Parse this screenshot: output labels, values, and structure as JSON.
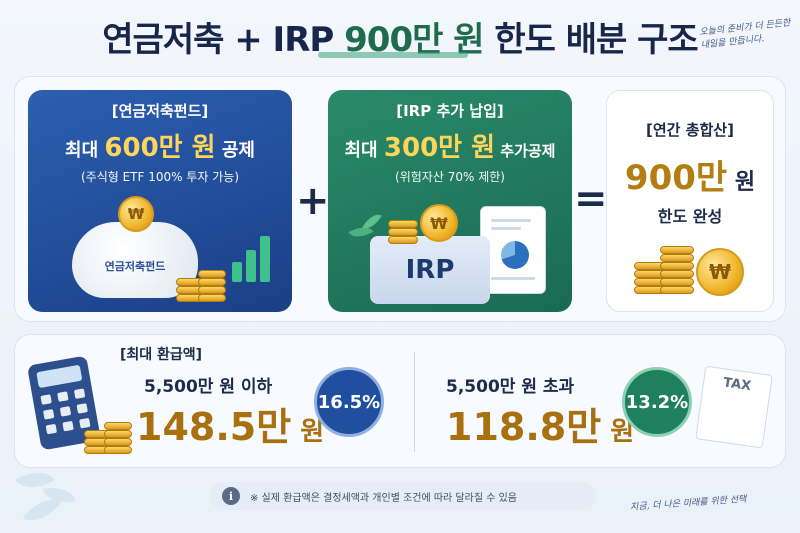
{
  "title": {
    "part1": "연금저축 + IRP ",
    "accent": "900만 원",
    "part2": " 한도 배분 구조"
  },
  "hand_notes": {
    "top": "오늘의 준비가 더 든든한 내일을 만듭니다.",
    "bottom": "지금, 더 나은 미래를 위한 선택"
  },
  "pension_card": {
    "label": "[연금저축펀드]",
    "main_prefix": "최대 ",
    "main_big": "600만 원",
    "main_suffix": " 공제",
    "sub": "(주식형 ETF 100% 투자 가능)",
    "piggy_label": "연금저축펀드",
    "coin_symbol": "₩"
  },
  "irp_card": {
    "label": "[IRP 추가 납입]",
    "main_prefix": "최대 ",
    "main_big": "300만 원",
    "main_suffix": " 추가공제",
    "sub": "(위험자산 70% 제한)",
    "folder_label": "IRP",
    "coin_symbol": "₩"
  },
  "operators": {
    "plus": "+",
    "equals": "="
  },
  "total_card": {
    "label": "[연간 총합산]",
    "amount": "900만",
    "unit": " 원",
    "sub": "한도 완성",
    "coin_symbol": "₩"
  },
  "refund": {
    "label": "[최대 환급액]",
    "low": {
      "condition": "5,500만 원 이하",
      "amount": "148.5만",
      "unit": " 원",
      "rate": "16.5%"
    },
    "high": {
      "condition": "5,500만 원 초과",
      "amount": "118.8만",
      "unit": " 원",
      "rate": "13.2%"
    },
    "tax_doc": "TAX",
    "coin_symbol": "₩"
  },
  "notice": {
    "icon": "i",
    "text": "※ 실제 환급액은 결정세액과 개인별 조건에 따라 달라질 수 있음"
  },
  "colors": {
    "blue_card": "#1b3f87",
    "green_card": "#1a6a52",
    "gold": "#a8700e",
    "rate_low": "#1f4f9e",
    "rate_high": "#1f8060"
  }
}
